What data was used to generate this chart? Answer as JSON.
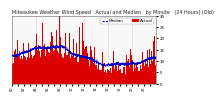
{
  "title": "Milwaukee Weather Wind Speed  Actual and Median  by Minute  (24 Hours) (Old)",
  "n_points": 1440,
  "seed": 42,
  "bar_color": "#dd0000",
  "line_color": "#0000cc",
  "background_color": "#ffffff",
  "plot_bg_color": "#f8f8f8",
  "ylim": [
    0,
    30
  ],
  "yticks": [
    0,
    5,
    10,
    15,
    20,
    25,
    30
  ],
  "title_fontsize": 3.5,
  "tick_fontsize": 2.8,
  "legend_fontsize": 3.0,
  "grid_color": "#aaaaaa",
  "vgrid_positions": [
    240,
    480,
    720,
    960,
    1200
  ]
}
